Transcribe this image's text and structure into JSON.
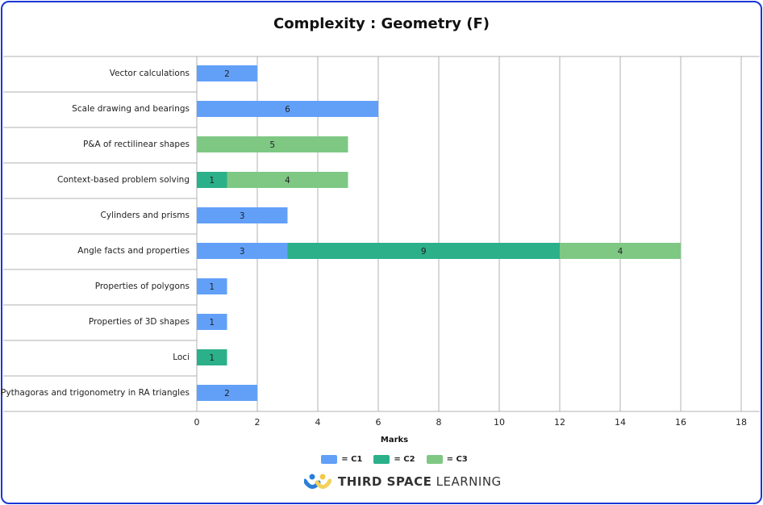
{
  "chart_data": {
    "type": "bar",
    "orientation": "horizontal",
    "stacked": true,
    "title": "Complexity : Geometry (F)",
    "xlabel": "Marks",
    "xlim": [
      0,
      18
    ],
    "xticks": [
      0,
      2,
      4,
      6,
      8,
      10,
      12,
      14,
      16,
      18
    ],
    "grid": true,
    "legend_position": "bottom",
    "categories": [
      "Vector calculations",
      "Scale drawing and bearings",
      "P&A of rectilinear shapes",
      "Context-based problem solving",
      "Cylinders and prisms",
      "Angle facts and properties",
      "Properties of polygons",
      "Properties of 3D shapes",
      "Loci",
      "Pythagoras and trigonometry in RA triangles"
    ],
    "series": [
      {
        "name": "C1",
        "legend_label": "= C1",
        "color": "#62a0f8",
        "values": [
          2,
          6,
          0,
          0,
          3,
          3,
          1,
          1,
          0,
          2
        ]
      },
      {
        "name": "C2",
        "legend_label": "= C2",
        "color": "#2bb08a",
        "values": [
          0,
          0,
          0,
          1,
          0,
          9,
          0,
          0,
          1,
          0
        ]
      },
      {
        "name": "C3",
        "legend_label": "= C3",
        "color": "#7ec884",
        "values": [
          0,
          0,
          5,
          4,
          0,
          4,
          0,
          0,
          0,
          0
        ]
      }
    ]
  },
  "branding": {
    "logo_bold": "THIRD SPACE",
    "logo_light": "LEARNING"
  },
  "colors": {
    "frame": "#1a36d6",
    "grid": "#b0b0b0"
  }
}
